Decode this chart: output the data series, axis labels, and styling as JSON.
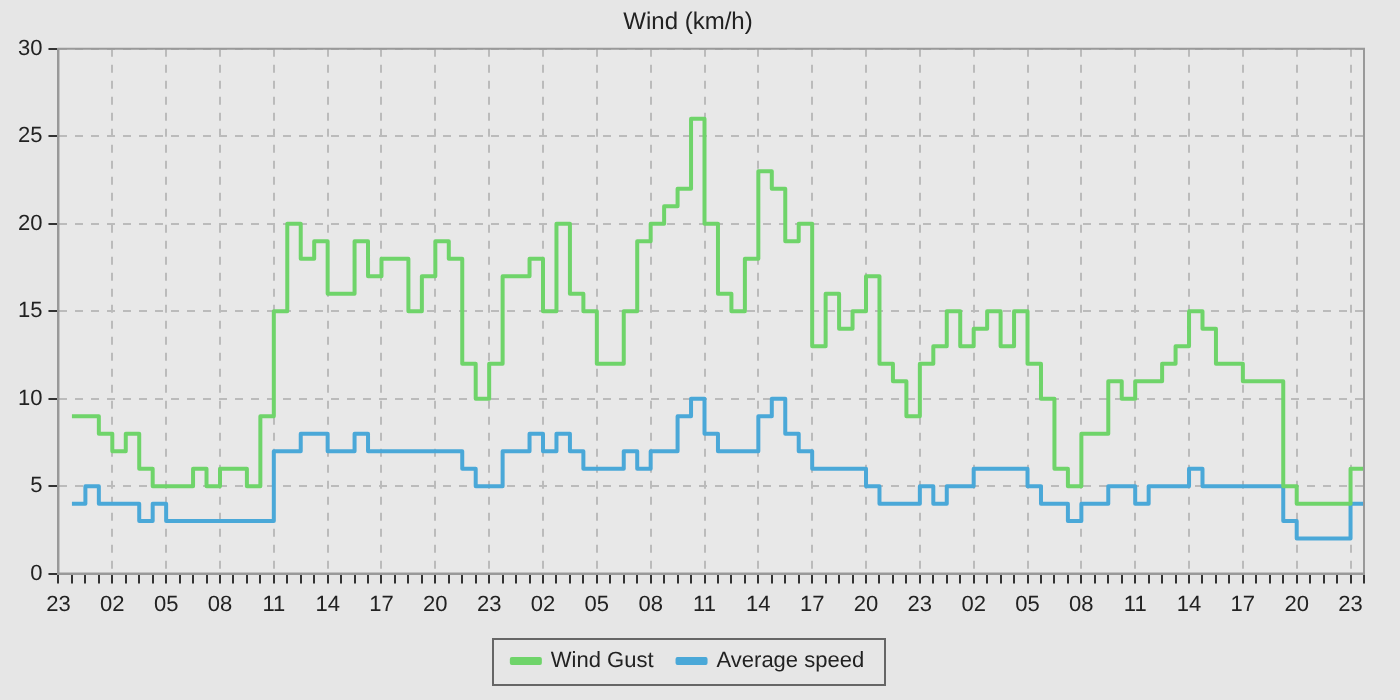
{
  "chart_data": {
    "type": "step",
    "title": "Wind (km/h)",
    "legend": "bottom",
    "grid": true,
    "marker": "none",
    "line_style": "solid",
    "ylim": [
      0,
      30
    ],
    "yticks": [
      0,
      5,
      10,
      15,
      20,
      25,
      30
    ],
    "categories": [
      "23",
      null,
      null,
      null,
      "02",
      null,
      null,
      null,
      "05",
      null,
      null,
      null,
      "08",
      null,
      null,
      null,
      "11",
      null,
      null,
      null,
      "14",
      null,
      null,
      null,
      "17",
      null,
      null,
      null,
      "20",
      null,
      null,
      null,
      "23",
      null,
      null,
      null,
      "02",
      null,
      null,
      null,
      "05",
      null,
      null,
      null,
      "08",
      null,
      null,
      null,
      "11",
      null,
      null,
      null,
      "14",
      null,
      null,
      null,
      "17",
      null,
      null,
      null,
      "20",
      null,
      null,
      null,
      "23",
      null,
      null,
      null,
      "02",
      null,
      null,
      null,
      "05",
      null,
      null,
      null,
      "08",
      null,
      null,
      null,
      "11",
      null,
      null,
      null,
      "14",
      null,
      null,
      null,
      "17",
      null,
      null,
      null,
      "20",
      null,
      null,
      null,
      "23",
      null
    ],
    "series": [
      {
        "name": "Wind Gust",
        "color": "#6fd46a",
        "values": [
          null,
          9,
          9,
          8,
          7,
          8,
          6,
          5,
          5,
          5,
          6,
          5,
          6,
          6,
          5,
          9,
          15,
          20,
          18,
          19,
          16,
          16,
          19,
          17,
          18,
          18,
          15,
          17,
          19,
          18,
          12,
          10,
          12,
          17,
          17,
          18,
          15,
          20,
          16,
          15,
          12,
          12,
          15,
          19,
          20,
          21,
          22,
          26,
          20,
          16,
          15,
          18,
          23,
          22,
          19,
          20,
          13,
          16,
          14,
          15,
          17,
          12,
          11,
          9,
          12,
          13,
          15,
          13,
          14,
          15,
          13,
          15,
          12,
          10,
          6,
          5,
          8,
          8,
          11,
          10,
          11,
          11,
          12,
          13,
          15,
          14,
          12,
          12,
          11,
          11,
          11,
          5,
          4,
          4,
          4,
          4,
          6,
          6
        ]
      },
      {
        "name": "Average speed",
        "color": "#4aa8d8",
        "values": [
          null,
          4,
          5,
          4,
          4,
          4,
          3,
          4,
          3,
          3,
          3,
          3,
          3,
          3,
          3,
          3,
          7,
          7,
          8,
          8,
          7,
          7,
          8,
          7,
          7,
          7,
          7,
          7,
          7,
          7,
          6,
          5,
          5,
          7,
          7,
          8,
          7,
          8,
          7,
          6,
          6,
          6,
          7,
          6,
          7,
          7,
          9,
          10,
          8,
          7,
          7,
          7,
          9,
          10,
          8,
          7,
          6,
          6,
          6,
          6,
          5,
          4,
          4,
          4,
          5,
          4,
          5,
          5,
          6,
          6,
          6,
          6,
          5,
          4,
          4,
          3,
          4,
          4,
          5,
          5,
          4,
          5,
          5,
          5,
          6,
          5,
          5,
          5,
          5,
          5,
          5,
          3,
          2,
          2,
          2,
          2,
          4,
          4
        ]
      }
    ]
  }
}
